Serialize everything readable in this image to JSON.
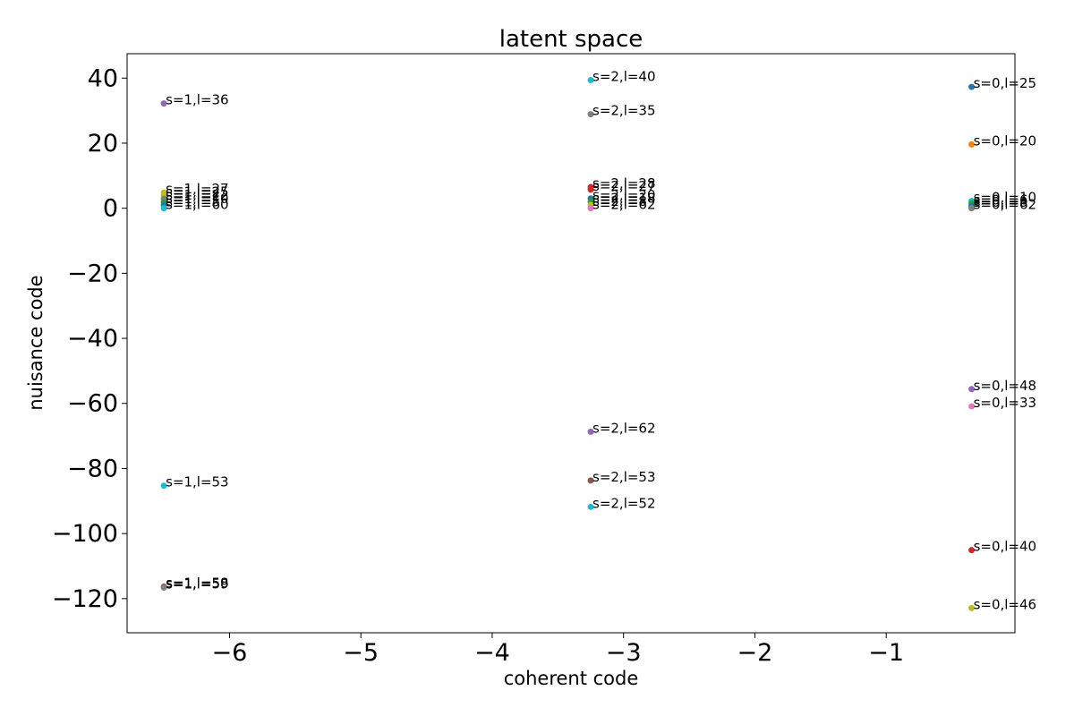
{
  "chart_data": {
    "type": "scatter",
    "title": "latent space",
    "xlabel": "coherent code",
    "ylabel": "nuisance code",
    "xlim": [
      -6.78,
      -0.02
    ],
    "ylim": [
      -130.5,
      47.5
    ],
    "xticks": [
      -6,
      -5,
      -4,
      -3,
      -2,
      -1
    ],
    "xtick_labels": [
      "−6",
      "−5",
      "−4",
      "−3",
      "−2",
      "−1"
    ],
    "yticks": [
      40,
      20,
      0,
      -20,
      -40,
      -60,
      -80,
      -100,
      -120
    ],
    "ytick_labels": [
      "40",
      "20",
      "0",
      "−20",
      "−40",
      "−60",
      "−80",
      "−100",
      "−120"
    ],
    "grid": false,
    "points": [
      {
        "x": -6.5,
        "y": 32.2,
        "label": "s=1,l=36",
        "color": "#9467bd"
      },
      {
        "x": -6.5,
        "y": 4.8,
        "label": "s=1,l=27",
        "color": "#bcbd22"
      },
      {
        "x": -6.5,
        "y": 3.9,
        "label": "s=1,l=25",
        "color": "#bcbd22"
      },
      {
        "x": -6.5,
        "y": 2.9,
        "label": "s=1,l=22",
        "color": "#7f7f7f"
      },
      {
        "x": -6.5,
        "y": 1.8,
        "label": "s=1,l=10",
        "color": "#2ca02c"
      },
      {
        "x": -6.5,
        "y": 0.9,
        "label": "s=1,l=5",
        "color": "#1f77b4"
      },
      {
        "x": -6.5,
        "y": 0.0,
        "label": "s=1,l=60",
        "color": "#17becf"
      },
      {
        "x": -6.5,
        "y": -85.3,
        "label": "s=1,l=53",
        "color": "#17becf"
      },
      {
        "x": -6.5,
        "y": -116.3,
        "label": "s=1,l=58",
        "color": "#8c564b"
      },
      {
        "x": -6.5,
        "y": -116.6,
        "label": "s=1,l=59",
        "color": "#7f7f7f"
      },
      {
        "x": -3.25,
        "y": 39.4,
        "label": "s=2,l=40",
        "color": "#17becf"
      },
      {
        "x": -3.25,
        "y": 28.9,
        "label": "s=2,l=35",
        "color": "#7f7f7f"
      },
      {
        "x": -3.25,
        "y": 6.5,
        "label": "s=2,l=28",
        "color": "#d62728"
      },
      {
        "x": -3.25,
        "y": 5.7,
        "label": "s=2,l=27",
        "color": "#d62728"
      },
      {
        "x": -3.25,
        "y": 3.0,
        "label": "s=2,l=20",
        "color": "#1f77b4"
      },
      {
        "x": -3.25,
        "y": 2.0,
        "label": "s=2,l=18",
        "color": "#2ca02c"
      },
      {
        "x": -3.25,
        "y": 1.0,
        "label": "s=2,l=8",
        "color": "#bcbd22"
      },
      {
        "x": -3.25,
        "y": 0.0,
        "label": "s=2,l=62",
        "color": "#e377c2"
      },
      {
        "x": -3.25,
        "y": -68.7,
        "label": "s=2,l=62",
        "color": "#9467bd"
      },
      {
        "x": -3.25,
        "y": -83.7,
        "label": "s=2,l=53",
        "color": "#8c564b"
      },
      {
        "x": -3.25,
        "y": -91.8,
        "label": "s=2,l=52",
        "color": "#17becf"
      },
      {
        "x": -0.35,
        "y": 37.3,
        "label": "s=0,l=25",
        "color": "#1f77b4"
      },
      {
        "x": -0.35,
        "y": 19.6,
        "label": "s=0,l=20",
        "color": "#ff7f0e"
      },
      {
        "x": -0.35,
        "y": 2.2,
        "label": "s=0,l=10",
        "color": "#17becf"
      },
      {
        "x": -0.35,
        "y": 1.4,
        "label": "s=0,l=6",
        "color": "#2ca02c"
      },
      {
        "x": -0.35,
        "y": 0.7,
        "label": "s=0,l=3",
        "color": "#1f77b4"
      },
      {
        "x": -0.35,
        "y": 0.0,
        "label": "s=0,l=62",
        "color": "#7f7f7f"
      },
      {
        "x": -0.35,
        "y": -55.6,
        "label": "s=0,l=48",
        "color": "#9467bd"
      },
      {
        "x": -0.35,
        "y": -60.9,
        "label": "s=0,l=33",
        "color": "#e377c2"
      },
      {
        "x": -0.35,
        "y": -105.1,
        "label": "s=0,l=40",
        "color": "#d62728"
      },
      {
        "x": -0.35,
        "y": -122.9,
        "label": "s=0,l=46",
        "color": "#bcbd22"
      }
    ]
  }
}
